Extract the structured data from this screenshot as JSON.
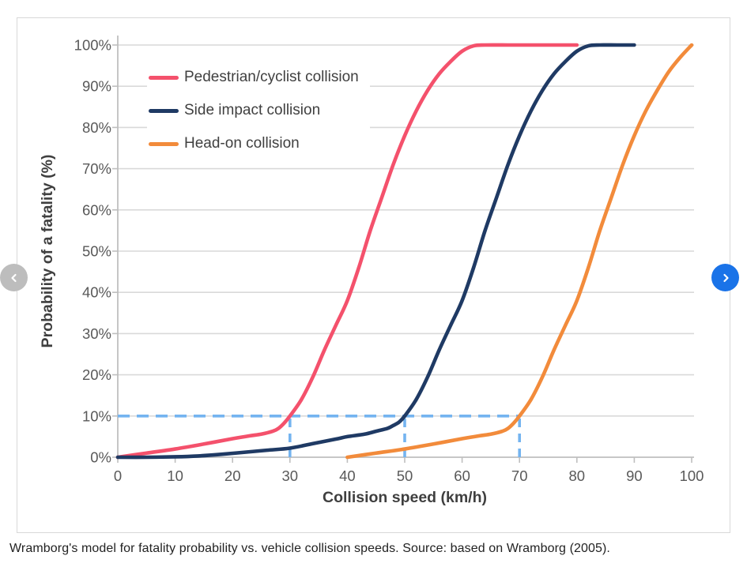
{
  "caption": "Wramborg's model for fatality probability vs. vehicle collision speeds. Source: based on Wramborg (2005).",
  "carousel": {
    "prev": {
      "label": "previous",
      "bg": "#bdbdbd"
    },
    "next": {
      "label": "next",
      "bg": "#1a73e8"
    }
  },
  "chart_data": {
    "type": "line",
    "title": "",
    "xlabel": "Collision speed (km/h)",
    "ylabel": "Probability of a fatality (%)",
    "xlim": [
      0,
      100
    ],
    "ylim": [
      0,
      100
    ],
    "x_ticks": [
      0,
      10,
      20,
      30,
      40,
      50,
      60,
      70,
      80,
      90,
      100
    ],
    "y_ticks": [
      0,
      10,
      20,
      30,
      40,
      50,
      60,
      70,
      80,
      90,
      100
    ],
    "y_tick_labels": [
      "0%",
      "10%",
      "20%",
      "30%",
      "40%",
      "50%",
      "60%",
      "70%",
      "80%",
      "90%",
      "100%"
    ],
    "grid": "horizontal-only",
    "legend_position": "inside-top-left",
    "series": [
      {
        "name": "Pedestrian/cyclist collision",
        "color": "#f4516c",
        "points": [
          [
            0,
            0
          ],
          [
            5,
            1
          ],
          [
            10,
            2
          ],
          [
            15,
            3.2
          ],
          [
            20,
            4.5
          ],
          [
            23,
            5.2
          ],
          [
            25,
            5.6
          ],
          [
            27,
            6.3
          ],
          [
            28,
            7
          ],
          [
            29,
            8.3
          ],
          [
            30,
            10
          ],
          [
            32,
            14
          ],
          [
            34,
            19.5
          ],
          [
            36,
            26
          ],
          [
            38,
            32
          ],
          [
            40,
            38
          ],
          [
            42,
            46
          ],
          [
            44,
            55
          ],
          [
            46,
            63
          ],
          [
            48,
            71
          ],
          [
            50,
            78
          ],
          [
            52,
            84
          ],
          [
            54,
            89
          ],
          [
            56,
            93
          ],
          [
            58,
            96
          ],
          [
            60,
            98.5
          ],
          [
            62,
            99.8
          ],
          [
            64,
            100
          ],
          [
            68,
            100
          ],
          [
            72,
            100
          ],
          [
            76,
            100
          ],
          [
            80,
            100
          ]
        ]
      },
      {
        "name": "Side impact collision",
        "color": "#1f3a64",
        "points": [
          [
            0,
            0
          ],
          [
            5,
            0
          ],
          [
            10,
            0.1
          ],
          [
            14,
            0.3
          ],
          [
            18,
            0.7
          ],
          [
            22,
            1.2
          ],
          [
            26,
            1.7
          ],
          [
            30,
            2.2
          ],
          [
            34,
            3.3
          ],
          [
            38,
            4.4
          ],
          [
            40,
            5
          ],
          [
            43,
            5.6
          ],
          [
            45,
            6.3
          ],
          [
            47,
            7
          ],
          [
            48,
            7.7
          ],
          [
            49,
            8.5
          ],
          [
            50,
            10
          ],
          [
            52,
            14
          ],
          [
            54,
            19.5
          ],
          [
            56,
            26
          ],
          [
            58,
            32
          ],
          [
            60,
            38
          ],
          [
            62,
            46
          ],
          [
            64,
            55
          ],
          [
            66,
            63
          ],
          [
            68,
            71
          ],
          [
            70,
            78
          ],
          [
            72,
            84
          ],
          [
            74,
            89
          ],
          [
            76,
            93
          ],
          [
            78,
            96
          ],
          [
            80,
            98.5
          ],
          [
            82,
            99.8
          ],
          [
            84,
            100
          ],
          [
            87,
            100
          ],
          [
            90,
            100
          ]
        ]
      },
      {
        "name": "Head-on collision",
        "color": "#f28b3b",
        "points": [
          [
            40,
            0
          ],
          [
            45,
            1
          ],
          [
            50,
            2
          ],
          [
            55,
            3.2
          ],
          [
            60,
            4.5
          ],
          [
            63,
            5.2
          ],
          [
            65,
            5.6
          ],
          [
            67,
            6.3
          ],
          [
            68,
            7
          ],
          [
            69,
            8.3
          ],
          [
            70,
            10
          ],
          [
            72,
            14
          ],
          [
            74,
            19.5
          ],
          [
            76,
            26
          ],
          [
            78,
            32
          ],
          [
            80,
            38
          ],
          [
            82,
            46
          ],
          [
            84,
            55
          ],
          [
            86,
            63
          ],
          [
            88,
            71
          ],
          [
            90,
            78
          ],
          [
            92,
            84
          ],
          [
            94,
            89
          ],
          [
            96,
            93.5
          ],
          [
            98,
            97
          ],
          [
            100,
            100
          ]
        ]
      }
    ],
    "dashed_guides": {
      "color": "#74b4f0",
      "horizontal": [
        {
          "y": 10,
          "x1": 0,
          "x2": 70
        }
      ],
      "vertical": [
        {
          "x": 30,
          "y1": 0,
          "y2": 10
        },
        {
          "x": 50,
          "y1": 0,
          "y2": 10
        },
        {
          "x": 70,
          "y1": 0,
          "y2": 10
        }
      ]
    },
    "style": {
      "gridline": "#d9d9d9",
      "axis": "#bfbfbf",
      "tick_text": "#595959",
      "axis_title_color": "#3f3f3f"
    }
  }
}
